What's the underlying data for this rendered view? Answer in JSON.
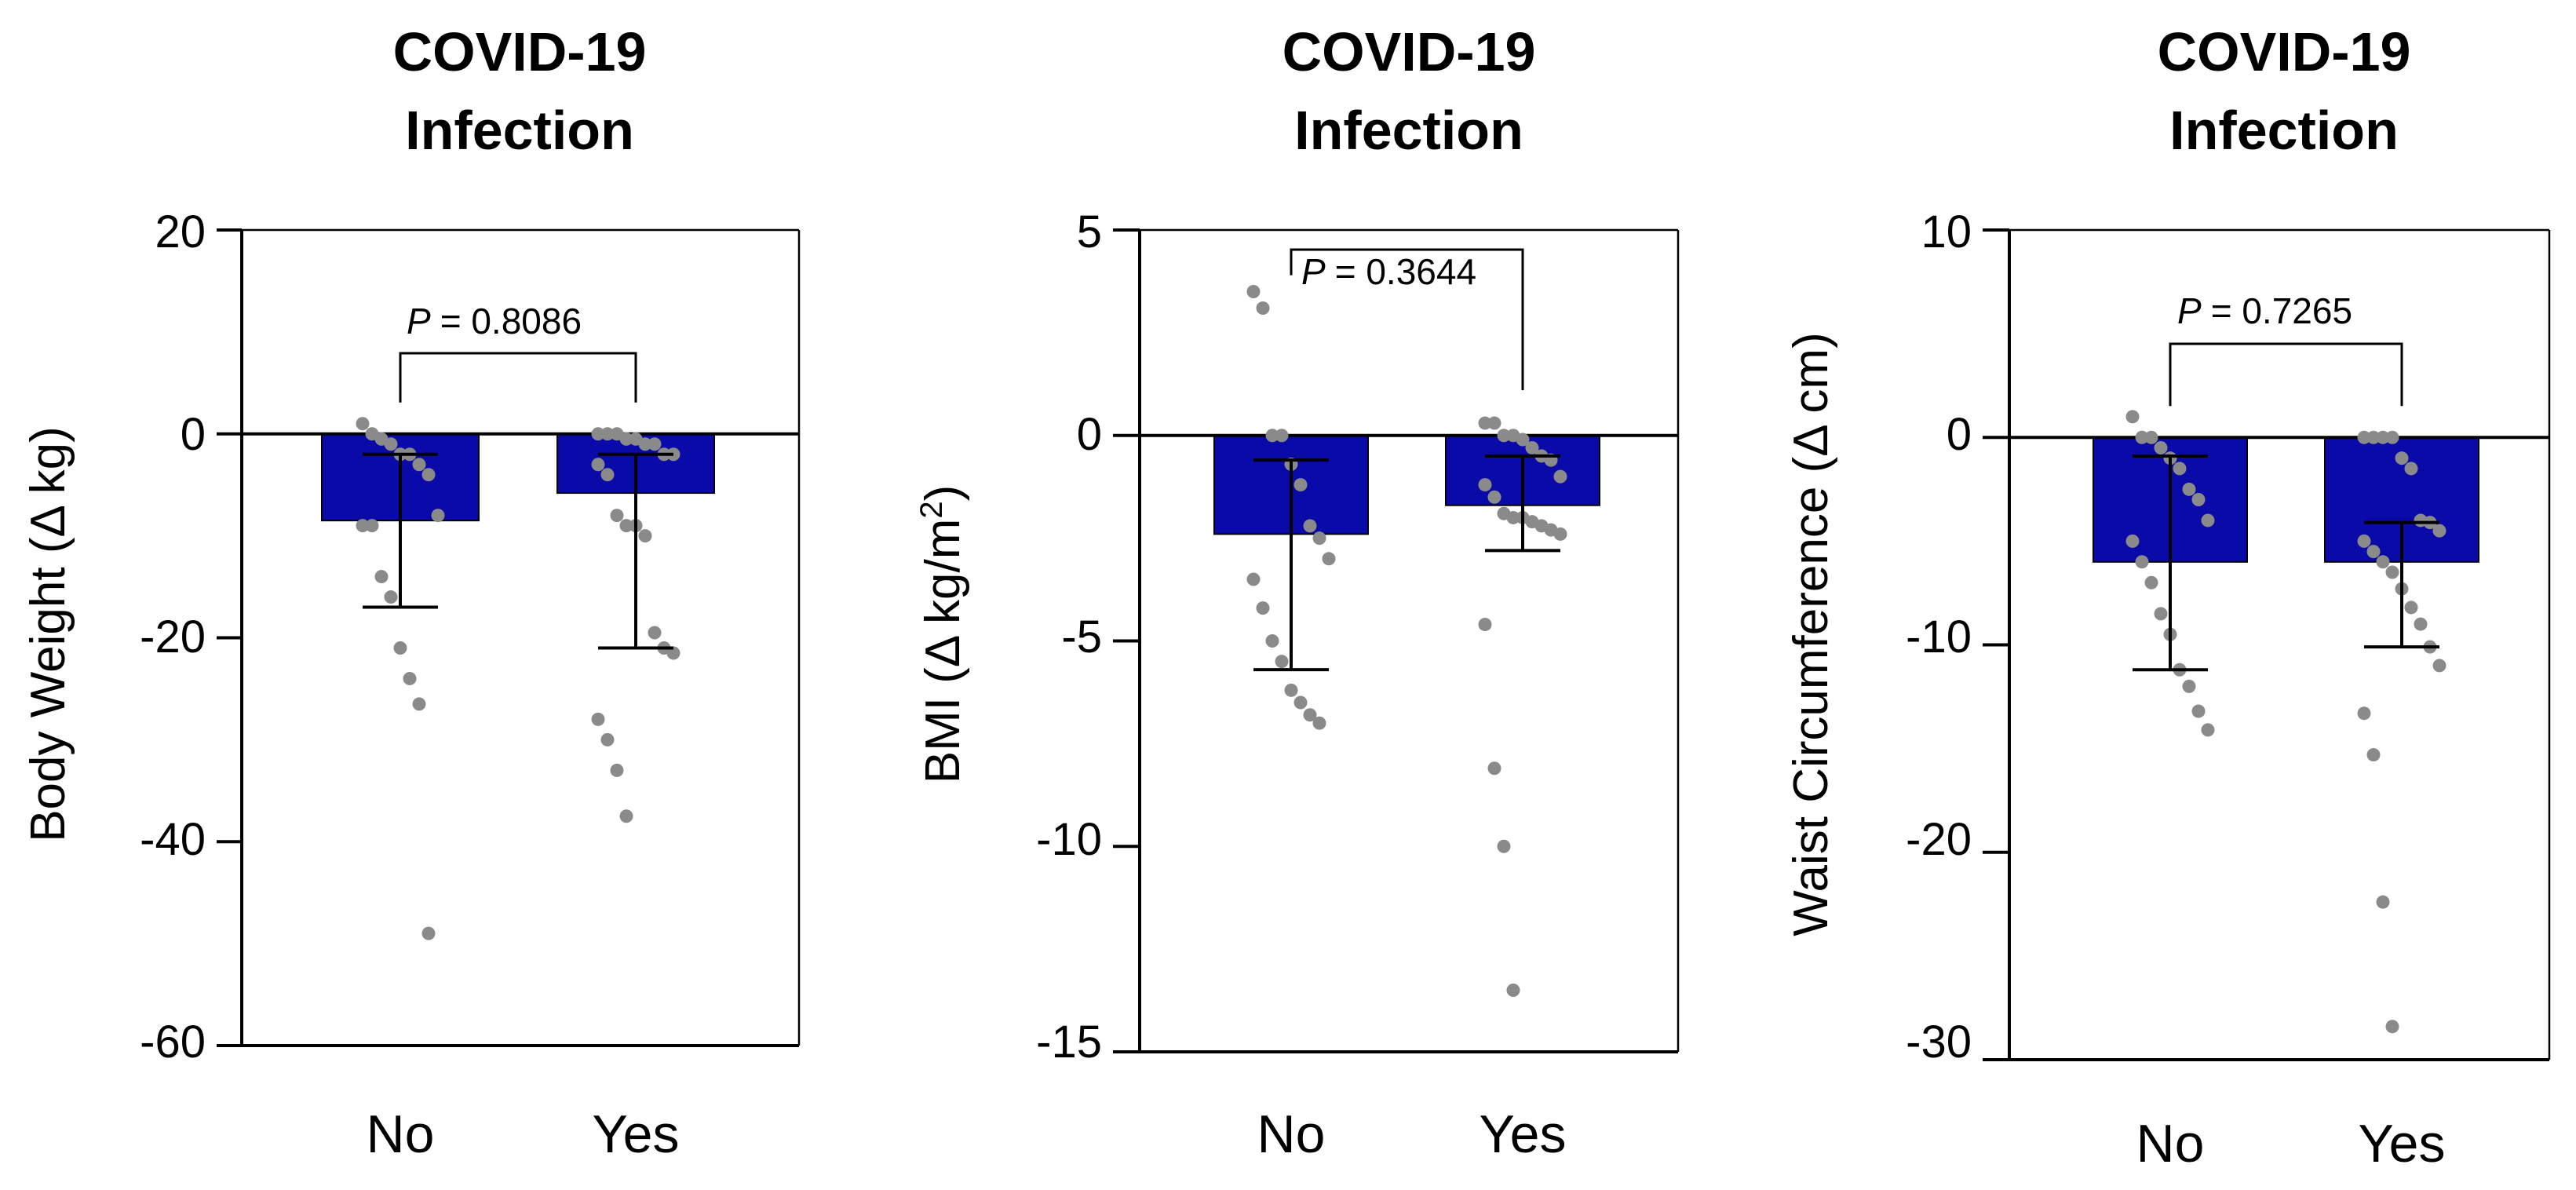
{
  "chart_data": [
    {
      "type": "bar",
      "title": [
        "COVID-19",
        "Infection"
      ],
      "xlabel": "",
      "ylabel": "Body Weight (Δ kg)",
      "categories": [
        "No",
        "Yes"
      ],
      "values": [
        -8.5,
        -5.8
      ],
      "error_low": [
        -17,
        -21
      ],
      "error_high": [
        -2,
        -2
      ],
      "points": [
        [
          1,
          0,
          -0.5,
          -1,
          -2,
          -2,
          -3,
          -4,
          -8,
          -9,
          -9,
          -14,
          -16,
          -21,
          -24,
          -26.5,
          -49
        ],
        [
          0,
          0,
          0,
          -0.5,
          -0.5,
          -1,
          -1,
          -2,
          -2,
          -3,
          -4,
          -8,
          -9,
          -9,
          -10,
          -19.5,
          -21,
          -21.5,
          -28,
          -30,
          -33,
          -37.5
        ]
      ],
      "ylim": [
        -60,
        20
      ],
      "yticks": [
        "20",
        "0",
        "-20",
        "-40",
        "-60"
      ],
      "yticks_values": [
        20,
        0,
        -20,
        -40,
        -60
      ],
      "p_label": "P",
      "p_value": "= 0.8086",
      "bar_color": "#0a0aa8",
      "point_color": "#8a8a8a"
    },
    {
      "type": "bar",
      "title": [
        "COVID-19",
        "Infection"
      ],
      "xlabel": "",
      "ylabel_main": "BMI (Δ kg/m",
      "ylabel_sup": "2",
      "ylabel_end": ")",
      "categories": [
        "No",
        "Yes"
      ],
      "values": [
        -2.4,
        -1.7
      ],
      "error_low": [
        -5.7,
        -2.8
      ],
      "error_high": [
        -0.6,
        -0.5
      ],
      "points": [
        [
          3.5,
          3.1,
          0,
          0,
          -0.7,
          -1.2,
          -2.2,
          -2.5,
          -3,
          -3.5,
          -4.2,
          -5,
          -5.5,
          -6.2,
          -6.5,
          -6.8,
          -7
        ],
        [
          0.3,
          0.3,
          0,
          0,
          -0.1,
          -0.3,
          -0.5,
          -0.6,
          -1,
          -1.2,
          -1.5,
          -1.9,
          -2,
          -2,
          -2.1,
          -2.2,
          -2.3,
          -2.4,
          -4.6,
          -8.1,
          -10,
          -13.5
        ]
      ],
      "ylim": [
        -15,
        5
      ],
      "yticks": [
        "5",
        "0",
        "-5",
        "-10",
        "-15"
      ],
      "yticks_values": [
        5,
        0,
        -5,
        -10,
        -15
      ],
      "p_label": "P",
      "p_value": "= 0.3644",
      "bar_color": "#0a0aa8",
      "point_color": "#8a8a8a"
    },
    {
      "type": "bar",
      "title": [
        "COVID-19",
        "Infection"
      ],
      "xlabel": "",
      "ylabel": "Waist Circumference (Δ cm)",
      "categories": [
        "No",
        "Yes"
      ],
      "values": [
        -6,
        -6
      ],
      "error_low": [
        -11.2,
        -10.1
      ],
      "error_high": [
        -0.9,
        -4.1
      ],
      "points": [
        [
          1,
          0,
          0,
          -0.5,
          -1,
          -1.5,
          -2.5,
          -3,
          -4,
          -5,
          -6,
          -7,
          -8.5,
          -9.5,
          -11.2,
          -12,
          -13.2,
          -14.1
        ],
        [
          0,
          0,
          0,
          0,
          -1,
          -1.5,
          -4,
          -4.1,
          -4.5,
          -5,
          -5.5,
          -6,
          -6.5,
          -7.3,
          -8.2,
          -9,
          -10.1,
          -11,
          -13.3,
          -15.3,
          -22.4,
          -28.4
        ]
      ],
      "ylim": [
        -30,
        10
      ],
      "yticks": [
        "10",
        "0",
        "-10",
        "-20",
        "-30"
      ],
      "yticks_values": [
        10,
        0,
        -10,
        -20,
        -30
      ],
      "p_label": "P",
      "p_value": "= 0.7265",
      "bar_color": "#0a0aa8",
      "point_color": "#8a8a8a"
    }
  ]
}
